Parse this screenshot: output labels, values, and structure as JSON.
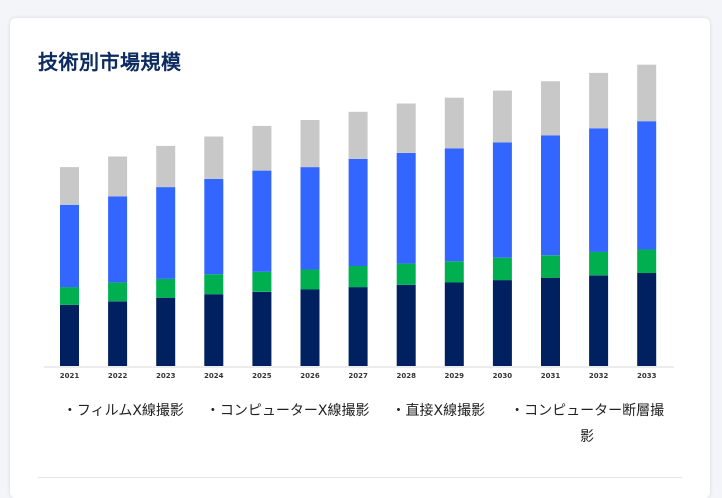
{
  "header": {
    "title": "技術別市場規模"
  },
  "legend": {
    "items": [
      {
        "label": "・フィルムX線撮影"
      },
      {
        "label": "・コンピューターX線撮影"
      },
      {
        "label": "・直接X線撮影"
      },
      {
        "label": "・コンピューター断層撮影"
      }
    ]
  },
  "colors": {
    "film": "#012060",
    "computed": "#00b050",
    "direct": "#3366ff",
    "ct": "#c8c8c8"
  },
  "chart_data": {
    "type": "bar",
    "stacked": true,
    "title": "技術別市場規模",
    "xlabel": "",
    "ylabel": "",
    "grid": false,
    "legend_position": "bottom",
    "categories": [
      "2021",
      "2022",
      "2023",
      "2024",
      "2025",
      "2026",
      "2027",
      "2028",
      "2029",
      "2030",
      "2031",
      "2032",
      "2033"
    ],
    "series": [
      {
        "name": "フィルムX線撮影",
        "color": "#012060",
        "values": [
          52,
          55,
          58,
          61,
          63,
          65,
          67,
          69,
          71,
          73,
          75,
          77,
          79
        ]
      },
      {
        "name": "コンピューターX線撮影",
        "color": "#00b050",
        "values": [
          15,
          16,
          16,
          17,
          17,
          17,
          18,
          18,
          18,
          19,
          19,
          20,
          20
        ]
      },
      {
        "name": "直接X線撮影",
        "color": "#3366ff",
        "values": [
          70,
          73,
          78,
          81,
          86,
          87,
          91,
          94,
          96,
          98,
          102,
          105,
          109
        ]
      },
      {
        "name": "コンピューター断層撮影",
        "color": "#c8c8c8",
        "values": [
          32,
          34,
          35,
          36,
          38,
          40,
          40,
          42,
          43,
          44,
          46,
          47,
          48
        ]
      }
    ],
    "ylim": [
      0,
      260
    ]
  }
}
